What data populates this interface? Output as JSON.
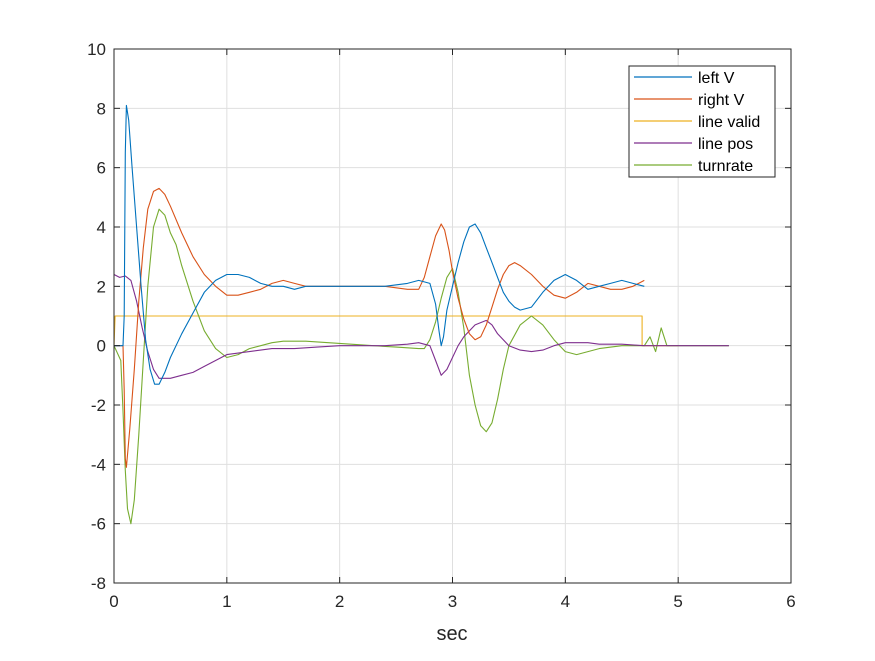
{
  "chart_data": {
    "type": "line",
    "xlabel": "sec",
    "ylabel": "",
    "xlim": [
      0,
      6
    ],
    "ylim": [
      -8,
      10
    ],
    "xticks": [
      "0",
      "1",
      "2",
      "3",
      "4",
      "5",
      "6"
    ],
    "yticks": [
      "-8",
      "-6",
      "-4",
      "-2",
      "0",
      "2",
      "4",
      "6",
      "8",
      "10"
    ],
    "grid": true,
    "legend_position": "top-right",
    "series": [
      {
        "name": "left V",
        "color": "#0072BD",
        "points": [
          [
            0,
            0
          ],
          [
            0.08,
            0
          ],
          [
            0.09,
            1.0
          ],
          [
            0.1,
            6.5
          ],
          [
            0.11,
            8.1
          ],
          [
            0.13,
            7.6
          ],
          [
            0.16,
            6.0
          ],
          [
            0.2,
            4.0
          ],
          [
            0.24,
            2.0
          ],
          [
            0.28,
            0.2
          ],
          [
            0.32,
            -0.8
          ],
          [
            0.36,
            -1.3
          ],
          [
            0.4,
            -1.3
          ],
          [
            0.45,
            -0.9
          ],
          [
            0.5,
            -0.4
          ],
          [
            0.6,
            0.4
          ],
          [
            0.7,
            1.1
          ],
          [
            0.8,
            1.8
          ],
          [
            0.9,
            2.2
          ],
          [
            1.0,
            2.4
          ],
          [
            1.1,
            2.4
          ],
          [
            1.2,
            2.3
          ],
          [
            1.3,
            2.1
          ],
          [
            1.4,
            2.0
          ],
          [
            1.5,
            2.0
          ],
          [
            1.6,
            1.9
          ],
          [
            1.7,
            2.0
          ],
          [
            1.8,
            2.0
          ],
          [
            1.9,
            2.0
          ],
          [
            2.0,
            2.0
          ],
          [
            2.2,
            2.0
          ],
          [
            2.4,
            2.0
          ],
          [
            2.6,
            2.1
          ],
          [
            2.7,
            2.2
          ],
          [
            2.8,
            2.1
          ],
          [
            2.85,
            1.4
          ],
          [
            2.88,
            0.5
          ],
          [
            2.9,
            0.0
          ],
          [
            2.92,
            0.3
          ],
          [
            2.95,
            1.2
          ],
          [
            3.0,
            2.0
          ],
          [
            3.05,
            2.8
          ],
          [
            3.1,
            3.5
          ],
          [
            3.15,
            4.0
          ],
          [
            3.2,
            4.1
          ],
          [
            3.25,
            3.8
          ],
          [
            3.3,
            3.3
          ],
          [
            3.35,
            2.8
          ],
          [
            3.4,
            2.3
          ],
          [
            3.45,
            1.8
          ],
          [
            3.5,
            1.5
          ],
          [
            3.55,
            1.3
          ],
          [
            3.6,
            1.2
          ],
          [
            3.7,
            1.3
          ],
          [
            3.8,
            1.8
          ],
          [
            3.9,
            2.2
          ],
          [
            4.0,
            2.4
          ],
          [
            4.1,
            2.2
          ],
          [
            4.2,
            1.9
          ],
          [
            4.3,
            2.0
          ],
          [
            4.4,
            2.1
          ],
          [
            4.5,
            2.2
          ],
          [
            4.6,
            2.1
          ],
          [
            4.7,
            2.0
          ]
        ]
      },
      {
        "name": "right V",
        "color": "#D95319",
        "points": [
          [
            0,
            0
          ],
          [
            0.08,
            0
          ],
          [
            0.09,
            -1.5
          ],
          [
            0.1,
            -3.8
          ],
          [
            0.11,
            -4.1
          ],
          [
            0.14,
            -2.8
          ],
          [
            0.18,
            -0.8
          ],
          [
            0.22,
            1.5
          ],
          [
            0.26,
            3.3
          ],
          [
            0.3,
            4.6
          ],
          [
            0.35,
            5.2
          ],
          [
            0.4,
            5.3
          ],
          [
            0.45,
            5.1
          ],
          [
            0.5,
            4.7
          ],
          [
            0.6,
            3.8
          ],
          [
            0.7,
            3.0
          ],
          [
            0.8,
            2.4
          ],
          [
            0.9,
            2.0
          ],
          [
            1.0,
            1.7
          ],
          [
            1.1,
            1.7
          ],
          [
            1.2,
            1.8
          ],
          [
            1.3,
            1.9
          ],
          [
            1.4,
            2.1
          ],
          [
            1.5,
            2.2
          ],
          [
            1.6,
            2.1
          ],
          [
            1.7,
            2.0
          ],
          [
            1.8,
            2.0
          ],
          [
            2.0,
            2.0
          ],
          [
            2.2,
            2.0
          ],
          [
            2.4,
            2.0
          ],
          [
            2.6,
            1.9
          ],
          [
            2.7,
            1.9
          ],
          [
            2.75,
            2.3
          ],
          [
            2.8,
            3.0
          ],
          [
            2.85,
            3.7
          ],
          [
            2.9,
            4.1
          ],
          [
            2.93,
            3.9
          ],
          [
            2.97,
            3.2
          ],
          [
            3.0,
            2.5
          ],
          [
            3.05,
            1.6
          ],
          [
            3.1,
            0.9
          ],
          [
            3.15,
            0.4
          ],
          [
            3.2,
            0.2
          ],
          [
            3.25,
            0.3
          ],
          [
            3.3,
            0.7
          ],
          [
            3.35,
            1.3
          ],
          [
            3.4,
            1.9
          ],
          [
            3.45,
            2.4
          ],
          [
            3.5,
            2.7
          ],
          [
            3.55,
            2.8
          ],
          [
            3.6,
            2.7
          ],
          [
            3.7,
            2.4
          ],
          [
            3.8,
            2.0
          ],
          [
            3.9,
            1.7
          ],
          [
            4.0,
            1.6
          ],
          [
            4.1,
            1.8
          ],
          [
            4.2,
            2.1
          ],
          [
            4.3,
            2.0
          ],
          [
            4.4,
            1.9
          ],
          [
            4.5,
            1.9
          ],
          [
            4.6,
            2.0
          ],
          [
            4.7,
            2.2
          ]
        ]
      },
      {
        "name": "line valid",
        "color": "#EDB120",
        "points": [
          [
            0,
            0
          ],
          [
            0.01,
            1
          ],
          [
            4.68,
            1
          ],
          [
            4.68,
            0
          ],
          [
            5.0,
            0
          ]
        ]
      },
      {
        "name": "line pos",
        "color": "#7E2F8E",
        "points": [
          [
            0,
            2.4
          ],
          [
            0.05,
            2.3
          ],
          [
            0.1,
            2.35
          ],
          [
            0.15,
            2.2
          ],
          [
            0.2,
            1.5
          ],
          [
            0.25,
            0.6
          ],
          [
            0.3,
            -0.2
          ],
          [
            0.35,
            -0.8
          ],
          [
            0.4,
            -1.1
          ],
          [
            0.5,
            -1.1
          ],
          [
            0.6,
            -1.0
          ],
          [
            0.7,
            -0.9
          ],
          [
            0.8,
            -0.7
          ],
          [
            0.9,
            -0.5
          ],
          [
            1.0,
            -0.3
          ],
          [
            1.2,
            -0.2
          ],
          [
            1.4,
            -0.1
          ],
          [
            1.6,
            -0.1
          ],
          [
            1.8,
            -0.05
          ],
          [
            2.0,
            0.0
          ],
          [
            2.2,
            0.0
          ],
          [
            2.4,
            0.0
          ],
          [
            2.6,
            0.05
          ],
          [
            2.7,
            0.1
          ],
          [
            2.8,
            0.0
          ],
          [
            2.85,
            -0.5
          ],
          [
            2.9,
            -1.0
          ],
          [
            2.95,
            -0.8
          ],
          [
            3.0,
            -0.4
          ],
          [
            3.05,
            0.0
          ],
          [
            3.1,
            0.3
          ],
          [
            3.2,
            0.7
          ],
          [
            3.3,
            0.85
          ],
          [
            3.35,
            0.7
          ],
          [
            3.4,
            0.4
          ],
          [
            3.5,
            0.0
          ],
          [
            3.6,
            -0.15
          ],
          [
            3.7,
            -0.2
          ],
          [
            3.8,
            -0.15
          ],
          [
            3.9,
            0.0
          ],
          [
            4.0,
            0.1
          ],
          [
            4.1,
            0.1
          ],
          [
            4.2,
            0.1
          ],
          [
            4.3,
            0.05
          ],
          [
            4.5,
            0.05
          ],
          [
            4.7,
            0.0
          ],
          [
            5.0,
            0.0
          ],
          [
            5.2,
            0.0
          ],
          [
            5.45,
            0.0
          ]
        ]
      },
      {
        "name": "turnrate",
        "color": "#77AC30",
        "points": [
          [
            0,
            0
          ],
          [
            0.06,
            -0.5
          ],
          [
            0.08,
            -2.2
          ],
          [
            0.1,
            -4.2
          ],
          [
            0.12,
            -5.5
          ],
          [
            0.15,
            -6.0
          ],
          [
            0.18,
            -5.2
          ],
          [
            0.22,
            -3.0
          ],
          [
            0.26,
            -0.5
          ],
          [
            0.3,
            2.0
          ],
          [
            0.35,
            4.0
          ],
          [
            0.4,
            4.6
          ],
          [
            0.45,
            4.4
          ],
          [
            0.5,
            3.8
          ],
          [
            0.55,
            3.4
          ],
          [
            0.6,
            2.7
          ],
          [
            0.7,
            1.5
          ],
          [
            0.8,
            0.5
          ],
          [
            0.9,
            -0.1
          ],
          [
            1.0,
            -0.4
          ],
          [
            1.1,
            -0.3
          ],
          [
            1.2,
            -0.1
          ],
          [
            1.3,
            0.0
          ],
          [
            1.4,
            0.1
          ],
          [
            1.5,
            0.15
          ],
          [
            1.7,
            0.15
          ],
          [
            1.9,
            0.1
          ],
          [
            2.1,
            0.05
          ],
          [
            2.3,
            0.0
          ],
          [
            2.5,
            -0.05
          ],
          [
            2.7,
            -0.1
          ],
          [
            2.75,
            -0.1
          ],
          [
            2.8,
            0.2
          ],
          [
            2.85,
            0.8
          ],
          [
            2.9,
            1.6
          ],
          [
            2.95,
            2.3
          ],
          [
            3.0,
            2.6
          ],
          [
            3.05,
            1.8
          ],
          [
            3.1,
            0.6
          ],
          [
            3.15,
            -1.0
          ],
          [
            3.2,
            -2.0
          ],
          [
            3.25,
            -2.7
          ],
          [
            3.3,
            -2.9
          ],
          [
            3.35,
            -2.6
          ],
          [
            3.4,
            -1.8
          ],
          [
            3.45,
            -0.8
          ],
          [
            3.5,
            0.0
          ],
          [
            3.6,
            0.7
          ],
          [
            3.7,
            1.0
          ],
          [
            3.8,
            0.7
          ],
          [
            3.9,
            0.2
          ],
          [
            4.0,
            -0.2
          ],
          [
            4.1,
            -0.3
          ],
          [
            4.2,
            -0.2
          ],
          [
            4.3,
            -0.1
          ],
          [
            4.5,
            0.0
          ],
          [
            4.7,
            0.0
          ],
          [
            4.75,
            0.3
          ],
          [
            4.8,
            -0.2
          ],
          [
            4.85,
            0.6
          ],
          [
            4.9,
            0.0
          ],
          [
            5.0,
            0.0
          ],
          [
            5.2,
            0.0
          ],
          [
            5.45,
            0.0
          ]
        ]
      }
    ]
  }
}
